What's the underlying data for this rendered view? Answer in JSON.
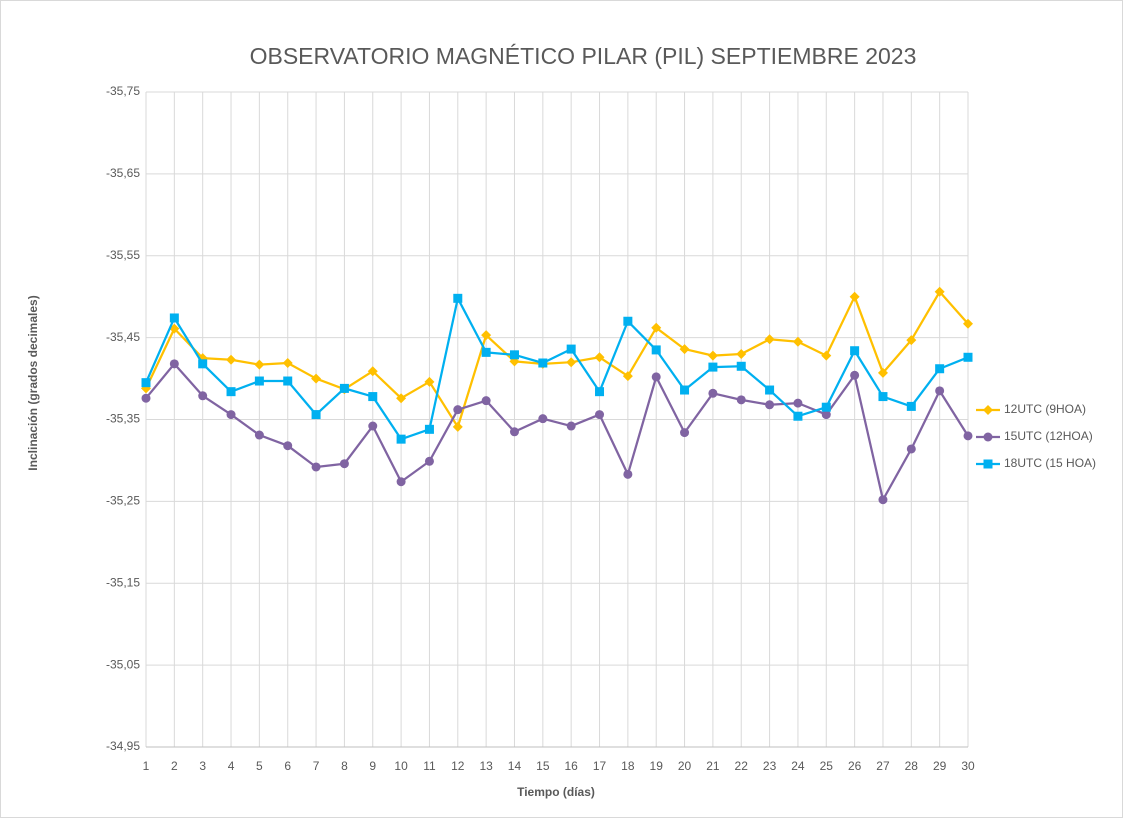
{
  "chart_data": {
    "type": "line",
    "title": "OBSERVATORIO MAGNÉTICO PILAR (PIL) SEPTIEMBRE 2023",
    "x_label": "Tiempo (días)",
    "y_label": "Inclinación (grados decimales)",
    "x": [
      1,
      2,
      3,
      4,
      5,
      6,
      7,
      8,
      9,
      10,
      11,
      12,
      13,
      14,
      15,
      16,
      17,
      18,
      19,
      20,
      21,
      22,
      23,
      24,
      25,
      26,
      27,
      28,
      29,
      30
    ],
    "xlim": [
      1,
      30
    ],
    "xticks": [
      1,
      2,
      3,
      4,
      5,
      6,
      7,
      8,
      9,
      10,
      11,
      12,
      13,
      14,
      15,
      16,
      17,
      18,
      19,
      20,
      21,
      22,
      23,
      24,
      25,
      26,
      27,
      28,
      29,
      30
    ],
    "ylim": [
      -35.75,
      -34.95
    ],
    "y_reversed": true,
    "yticks": [
      {
        "value": -35.75,
        "label": "-35,75"
      },
      {
        "value": -35.65,
        "label": "-35,65"
      },
      {
        "value": -35.55,
        "label": "-35,55"
      },
      {
        "value": -35.45,
        "label": "-35,45"
      },
      {
        "value": -35.35,
        "label": "-35,35"
      },
      {
        "value": -35.25,
        "label": "-35,25"
      },
      {
        "value": -35.15,
        "label": "-35,15"
      },
      {
        "value": -35.05,
        "label": "-35,05"
      },
      {
        "value": -34.95,
        "label": "-34,95"
      }
    ],
    "grid": true,
    "legend": "right",
    "series": [
      {
        "name": "12UTC (9HOA)",
        "color": "#FFC000",
        "marker": "diamond",
        "values": [
          -35.388,
          -35.461,
          -35.425,
          -35.423,
          -35.417,
          -35.419,
          -35.4,
          -35.387,
          -35.409,
          -35.376,
          -35.396,
          -35.341,
          -35.453,
          -35.421,
          -35.418,
          -35.42,
          -35.426,
          -35.403,
          -35.462,
          -35.436,
          -35.428,
          -35.43,
          -35.448,
          -35.445,
          -35.428,
          -35.5,
          -35.407,
          -35.447,
          -35.506,
          -35.467
        ]
      },
      {
        "name": "15UTC (12HOA)",
        "color": "#8064A2",
        "marker": "circle",
        "values": [
          -35.376,
          -35.418,
          -35.379,
          -35.356,
          -35.331,
          -35.318,
          -35.292,
          -35.296,
          -35.342,
          -35.274,
          -35.299,
          -35.362,
          -35.373,
          -35.335,
          -35.351,
          -35.342,
          -35.356,
          -35.283,
          -35.402,
          -35.334,
          -35.382,
          -35.374,
          -35.368,
          -35.37,
          -35.356,
          -35.404,
          -35.252,
          -35.314,
          -35.385,
          -35.33
        ]
      },
      {
        "name": "18UTC (15 HOA)",
        "color": "#00B0F0",
        "marker": "square",
        "values": [
          -35.395,
          -35.474,
          -35.418,
          -35.384,
          -35.397,
          -35.397,
          -35.356,
          -35.388,
          -35.378,
          -35.326,
          -35.338,
          -35.498,
          -35.432,
          -35.429,
          -35.419,
          -35.436,
          -35.384,
          -35.47,
          -35.435,
          -35.386,
          -35.414,
          -35.415,
          -35.386,
          -35.354,
          -35.365,
          -35.434,
          -35.378,
          -35.366,
          -35.412,
          -35.426
        ]
      }
    ]
  }
}
